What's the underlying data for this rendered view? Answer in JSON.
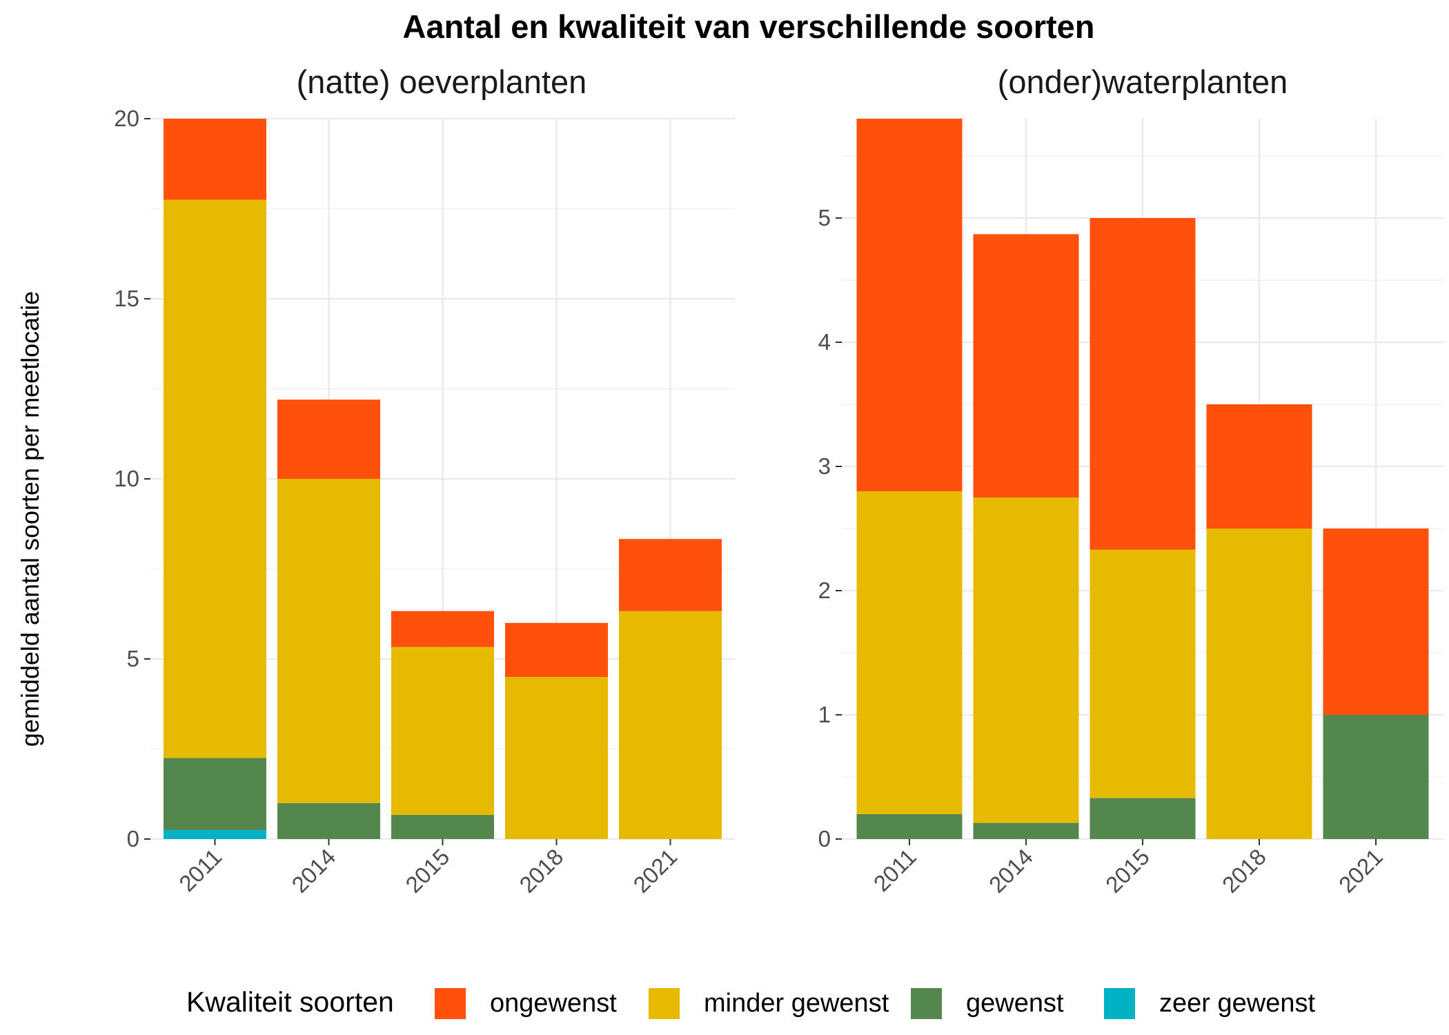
{
  "title": "Aantal en kwaliteit van verschillende soorten",
  "ylabel": "gemiddeld aantal soorten per meetlocatie",
  "legend": {
    "title": "Kwaliteit soorten",
    "items": [
      {
        "label": "ongewenst",
        "color": "#FF510B"
      },
      {
        "label": "minder gewenst",
        "color": "#E6BA00"
      },
      {
        "label": "gewenst",
        "color": "#53874D"
      },
      {
        "label": "zeer gewenst",
        "color": "#00B2C3"
      }
    ]
  },
  "chart_data": [
    {
      "type": "bar",
      "stacked": true,
      "title": "(natte) oeverplanten",
      "categories": [
        "2011",
        "2014",
        "2015",
        "2018",
        "2021"
      ],
      "ylim": [
        0,
        20
      ],
      "yticks": [
        0,
        5,
        10,
        15,
        20
      ],
      "grid": true,
      "series": [
        {
          "name": "zeer gewenst",
          "values": [
            0.25,
            0,
            0,
            0,
            0
          ]
        },
        {
          "name": "gewenst",
          "values": [
            2.0,
            1.0,
            0.67,
            0,
            0
          ]
        },
        {
          "name": "minder gewenst",
          "values": [
            15.5,
            9.0,
            4.66,
            4.5,
            6.33
          ]
        },
        {
          "name": "ongewenst",
          "values": [
            2.25,
            2.2,
            1.0,
            1.5,
            2.0
          ]
        }
      ]
    },
    {
      "type": "bar",
      "stacked": true,
      "title": "(onder)waterplanten",
      "categories": [
        "2011",
        "2014",
        "2015",
        "2018",
        "2021"
      ],
      "ylim": [
        0,
        5.8
      ],
      "yticks": [
        0,
        1,
        2,
        3,
        4,
        5
      ],
      "grid": true,
      "series": [
        {
          "name": "zeer gewenst",
          "values": [
            0,
            0,
            0,
            0,
            0
          ]
        },
        {
          "name": "gewenst",
          "values": [
            0.2,
            0.13,
            0.33,
            0,
            1.0
          ]
        },
        {
          "name": "minder gewenst",
          "values": [
            2.6,
            2.62,
            2.0,
            2.5,
            0
          ]
        },
        {
          "name": "ongewenst",
          "values": [
            3.0,
            2.12,
            2.67,
            1.0,
            1.5
          ]
        }
      ]
    }
  ]
}
